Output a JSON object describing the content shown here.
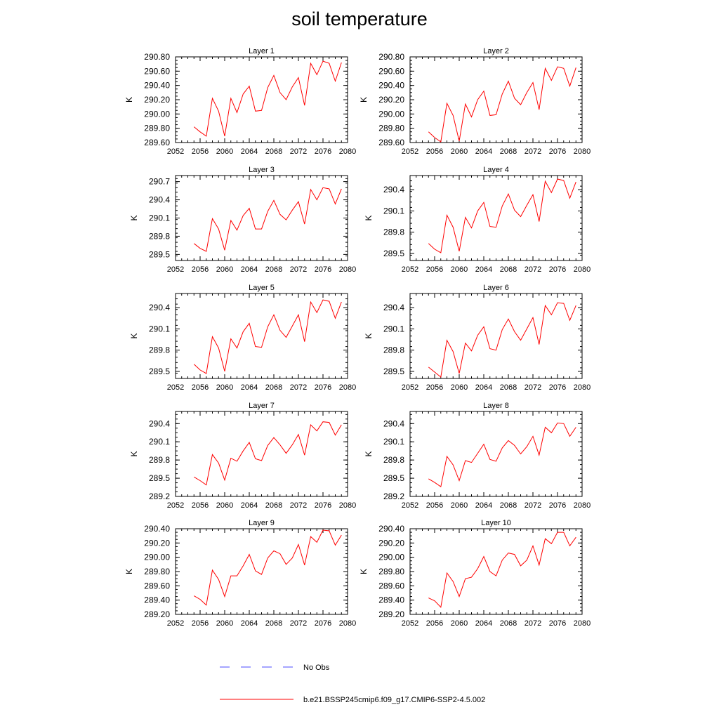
{
  "title": "soil temperature",
  "legend": [
    {
      "label": "No Obs",
      "color": "#4b4bff",
      "style": "dashed"
    },
    {
      "label": "b.e21.BSSP245cmip6.f09_g17.CMIP6-SSP2-4.5.002",
      "color": "#ff0000",
      "style": "solid"
    }
  ],
  "chart_data": [
    {
      "type": "line",
      "title": "Layer 1",
      "ylabel": "K",
      "xlim": [
        2052,
        2080
      ],
      "xticks": [
        "2052",
        "2056",
        "2060",
        "2064",
        "2068",
        "2072",
        "2076",
        "2080"
      ],
      "ylim": [
        289.6,
        290.8
      ],
      "yticks": [
        "289.60",
        "289.80",
        "290.00",
        "290.20",
        "290.40",
        "290.60",
        "290.80"
      ],
      "series": [
        {
          "name": "b.e21.BSSP245cmip6.f09_g17.CMIP6-SSP2-4.5.002",
          "x": [
            2055,
            2056,
            2057,
            2058,
            2059,
            2060,
            2061,
            2062,
            2063,
            2064,
            2065,
            2066,
            2067,
            2068,
            2069,
            2070,
            2071,
            2072,
            2073,
            2074,
            2075,
            2076,
            2077,
            2078,
            2079
          ],
          "values": [
            289.82,
            289.75,
            289.69,
            290.22,
            290.04,
            289.69,
            290.22,
            290.02,
            290.28,
            290.39,
            290.04,
            290.05,
            290.37,
            290.54,
            290.3,
            290.2,
            290.38,
            290.51,
            290.12,
            290.71,
            290.55,
            290.74,
            290.71,
            290.46,
            290.72
          ]
        }
      ]
    },
    {
      "type": "line",
      "title": "Layer 2",
      "ylabel": "K",
      "xlim": [
        2052,
        2080
      ],
      "xticks": [
        "2052",
        "2056",
        "2060",
        "2064",
        "2068",
        "2072",
        "2076",
        "2080"
      ],
      "ylim": [
        289.6,
        290.8
      ],
      "yticks": [
        "289.60",
        "289.80",
        "290.00",
        "290.20",
        "290.40",
        "290.60",
        "290.80"
      ],
      "series": [
        {
          "name": "b.e21.BSSP245cmip6.f09_g17.CMIP6-SSP2-4.5.002",
          "x": [
            2055,
            2056,
            2057,
            2058,
            2059,
            2060,
            2061,
            2062,
            2063,
            2064,
            2065,
            2066,
            2067,
            2068,
            2069,
            2070,
            2071,
            2072,
            2073,
            2074,
            2075,
            2076,
            2077,
            2078,
            2079
          ],
          "values": [
            289.75,
            289.67,
            289.61,
            290.15,
            289.98,
            289.62,
            290.14,
            289.96,
            290.2,
            290.32,
            289.98,
            289.99,
            290.28,
            290.46,
            290.22,
            290.13,
            290.3,
            290.44,
            290.06,
            290.64,
            290.47,
            290.66,
            290.64,
            290.39,
            290.65
          ]
        }
      ]
    },
    {
      "type": "line",
      "title": "Layer 3",
      "ylabel": "K",
      "xlim": [
        2052,
        2080
      ],
      "xticks": [
        "2052",
        "2056",
        "2060",
        "2064",
        "2068",
        "2072",
        "2076",
        "2080"
      ],
      "ylim": [
        289.4,
        290.8
      ],
      "yticks": [
        "289.5",
        "289.8",
        "290.1",
        "290.4",
        "290.7"
      ],
      "series": [
        {
          "name": "b.e21.BSSP245cmip6.f09_g17.CMIP6-SSP2-4.5.002",
          "x": [
            2055,
            2056,
            2057,
            2058,
            2059,
            2060,
            2061,
            2062,
            2063,
            2064,
            2065,
            2066,
            2067,
            2068,
            2069,
            2070,
            2071,
            2072,
            2073,
            2074,
            2075,
            2076,
            2077,
            2078,
            2079
          ],
          "values": [
            289.68,
            289.6,
            289.55,
            290.09,
            289.92,
            289.57,
            290.06,
            289.9,
            290.14,
            290.26,
            289.92,
            289.92,
            290.21,
            290.39,
            290.16,
            290.07,
            290.23,
            290.37,
            290.0,
            290.57,
            290.4,
            290.6,
            290.58,
            290.33,
            290.58
          ]
        }
      ]
    },
    {
      "type": "line",
      "title": "Layer 4",
      "ylabel": "K",
      "xlim": [
        2052,
        2080
      ],
      "xticks": [
        "2052",
        "2056",
        "2060",
        "2064",
        "2068",
        "2072",
        "2076",
        "2080"
      ],
      "ylim": [
        289.4,
        290.6
      ],
      "yticks": [
        "289.5",
        "289.8",
        "290.1",
        "290.4"
      ],
      "series": [
        {
          "name": "b.e21.BSSP245cmip6.f09_g17.CMIP6-SSP2-4.5.002",
          "x": [
            2055,
            2056,
            2057,
            2058,
            2059,
            2060,
            2061,
            2062,
            2063,
            2064,
            2065,
            2066,
            2067,
            2068,
            2069,
            2070,
            2071,
            2072,
            2073,
            2074,
            2075,
            2076,
            2077,
            2078,
            2079
          ],
          "values": [
            289.64,
            289.56,
            289.51,
            290.04,
            289.87,
            289.53,
            290.01,
            289.86,
            290.1,
            290.22,
            289.88,
            289.87,
            290.17,
            290.34,
            290.11,
            290.02,
            290.18,
            290.33,
            289.95,
            290.52,
            290.36,
            290.55,
            290.53,
            290.28,
            290.51
          ]
        }
      ]
    },
    {
      "type": "line",
      "title": "Layer 5",
      "ylabel": "K",
      "xlim": [
        2052,
        2080
      ],
      "xticks": [
        "2052",
        "2056",
        "2060",
        "2064",
        "2068",
        "2072",
        "2076",
        "2080"
      ],
      "ylim": [
        289.4,
        290.6
      ],
      "yticks": [
        "289.5",
        "289.8",
        "290.1",
        "290.4"
      ],
      "series": [
        {
          "name": "b.e21.BSSP245cmip6.f09_g17.CMIP6-SSP2-4.5.002",
          "x": [
            2055,
            2056,
            2057,
            2058,
            2059,
            2060,
            2061,
            2062,
            2063,
            2064,
            2065,
            2066,
            2067,
            2068,
            2069,
            2070,
            2071,
            2072,
            2073,
            2074,
            2075,
            2076,
            2077,
            2078,
            2079
          ],
          "values": [
            289.6,
            289.52,
            289.47,
            289.99,
            289.83,
            289.5,
            289.96,
            289.83,
            290.06,
            290.18,
            289.85,
            289.84,
            290.13,
            290.3,
            290.08,
            289.98,
            290.14,
            290.3,
            289.92,
            290.48,
            290.33,
            290.51,
            290.49,
            290.25,
            290.48
          ]
        }
      ]
    },
    {
      "type": "line",
      "title": "Layer 6",
      "ylabel": "K",
      "xlim": [
        2052,
        2080
      ],
      "xticks": [
        "2052",
        "2056",
        "2060",
        "2064",
        "2068",
        "2072",
        "2076",
        "2080"
      ],
      "ylim": [
        289.4,
        290.6
      ],
      "yticks": [
        "289.5",
        "289.8",
        "290.1",
        "290.4"
      ],
      "series": [
        {
          "name": "b.e21.BSSP245cmip6.f09_g17.CMIP6-SSP2-4.5.002",
          "x": [
            2055,
            2056,
            2057,
            2058,
            2059,
            2060,
            2061,
            2062,
            2063,
            2064,
            2065,
            2066,
            2067,
            2068,
            2069,
            2070,
            2071,
            2072,
            2073,
            2074,
            2075,
            2076,
            2077,
            2078,
            2079
          ],
          "values": [
            289.56,
            289.49,
            289.42,
            289.94,
            289.78,
            289.47,
            289.9,
            289.79,
            290.01,
            290.13,
            289.82,
            289.8,
            290.09,
            290.24,
            290.06,
            289.94,
            290.1,
            290.26,
            289.88,
            290.43,
            290.3,
            290.47,
            290.46,
            290.22,
            290.43
          ]
        }
      ]
    },
    {
      "type": "line",
      "title": "Layer 7",
      "ylabel": "K",
      "xlim": [
        2052,
        2080
      ],
      "xticks": [
        "2052",
        "2056",
        "2060",
        "2064",
        "2068",
        "2072",
        "2076",
        "2080"
      ],
      "ylim": [
        289.2,
        290.6
      ],
      "yticks": [
        "289.2",
        "289.5",
        "289.8",
        "290.1",
        "290.4"
      ],
      "series": [
        {
          "name": "b.e21.BSSP245cmip6.f09_g17.CMIP6-SSP2-4.5.002",
          "x": [
            2055,
            2056,
            2057,
            2058,
            2059,
            2060,
            2061,
            2062,
            2063,
            2064,
            2065,
            2066,
            2067,
            2068,
            2069,
            2070,
            2071,
            2072,
            2073,
            2074,
            2075,
            2076,
            2077,
            2078,
            2079
          ],
          "values": [
            289.52,
            289.46,
            289.39,
            289.89,
            289.75,
            289.47,
            289.83,
            289.78,
            289.95,
            290.09,
            289.82,
            289.79,
            290.04,
            290.17,
            290.05,
            289.91,
            290.05,
            290.22,
            289.88,
            290.38,
            290.28,
            290.43,
            290.42,
            290.21,
            290.38
          ]
        }
      ]
    },
    {
      "type": "line",
      "title": "Layer 8",
      "ylabel": "K",
      "xlim": [
        2052,
        2080
      ],
      "xticks": [
        "2052",
        "2056",
        "2060",
        "2064",
        "2068",
        "2072",
        "2076",
        "2080"
      ],
      "ylim": [
        289.2,
        290.6
      ],
      "yticks": [
        "289.2",
        "289.5",
        "289.8",
        "290.1",
        "290.4"
      ],
      "series": [
        {
          "name": "b.e21.BSSP245cmip6.f09_g17.CMIP6-SSP2-4.5.002",
          "x": [
            2055,
            2056,
            2057,
            2058,
            2059,
            2060,
            2061,
            2062,
            2063,
            2064,
            2065,
            2066,
            2067,
            2068,
            2069,
            2070,
            2071,
            2072,
            2073,
            2074,
            2075,
            2076,
            2077,
            2078,
            2079
          ],
          "values": [
            289.49,
            289.43,
            289.36,
            289.86,
            289.72,
            289.46,
            289.79,
            289.76,
            289.91,
            290.06,
            289.81,
            289.78,
            290.0,
            290.12,
            290.04,
            289.9,
            290.02,
            290.19,
            289.88,
            290.34,
            290.25,
            290.41,
            290.4,
            290.19,
            290.34
          ]
        }
      ]
    },
    {
      "type": "line",
      "title": "Layer 9",
      "ylabel": "K",
      "xlim": [
        2052,
        2080
      ],
      "xticks": [
        "2052",
        "2056",
        "2060",
        "2064",
        "2068",
        "2072",
        "2076",
        "2080"
      ],
      "ylim": [
        289.2,
        290.4
      ],
      "yticks": [
        "289.20",
        "289.40",
        "289.60",
        "289.80",
        "290.00",
        "290.20",
        "290.40"
      ],
      "series": [
        {
          "name": "b.e21.BSSP245cmip6.f09_g17.CMIP6-SSP2-4.5.002",
          "x": [
            2055,
            2056,
            2057,
            2058,
            2059,
            2060,
            2061,
            2062,
            2063,
            2064,
            2065,
            2066,
            2067,
            2068,
            2069,
            2070,
            2071,
            2072,
            2073,
            2074,
            2075,
            2076,
            2077,
            2078,
            2079
          ],
          "values": [
            289.46,
            289.41,
            289.33,
            289.82,
            289.69,
            289.45,
            289.74,
            289.74,
            289.88,
            290.04,
            289.81,
            289.76,
            289.99,
            290.09,
            290.05,
            289.9,
            289.99,
            290.18,
            289.89,
            290.29,
            290.21,
            290.38,
            290.37,
            290.17,
            290.31
          ]
        }
      ]
    },
    {
      "type": "line",
      "title": "Layer 10",
      "ylabel": "K",
      "xlim": [
        2052,
        2080
      ],
      "xticks": [
        "2052",
        "2056",
        "2060",
        "2064",
        "2068",
        "2072",
        "2076",
        "2080"
      ],
      "ylim": [
        289.2,
        290.4
      ],
      "yticks": [
        "289.20",
        "289.40",
        "289.60",
        "289.80",
        "290.00",
        "290.20",
        "290.40"
      ],
      "series": [
        {
          "name": "b.e21.BSSP245cmip6.f09_g17.CMIP6-SSP2-4.5.002",
          "x": [
            2055,
            2056,
            2057,
            2058,
            2059,
            2060,
            2061,
            2062,
            2063,
            2064,
            2065,
            2066,
            2067,
            2068,
            2069,
            2070,
            2071,
            2072,
            2073,
            2074,
            2075,
            2076,
            2077,
            2078,
            2079
          ],
          "values": [
            289.43,
            289.39,
            289.3,
            289.78,
            289.66,
            289.45,
            289.7,
            289.72,
            289.84,
            290.01,
            289.8,
            289.74,
            289.96,
            290.06,
            290.04,
            289.88,
            289.96,
            290.16,
            289.89,
            290.26,
            290.19,
            290.35,
            290.35,
            290.16,
            290.28
          ]
        }
      ]
    }
  ]
}
